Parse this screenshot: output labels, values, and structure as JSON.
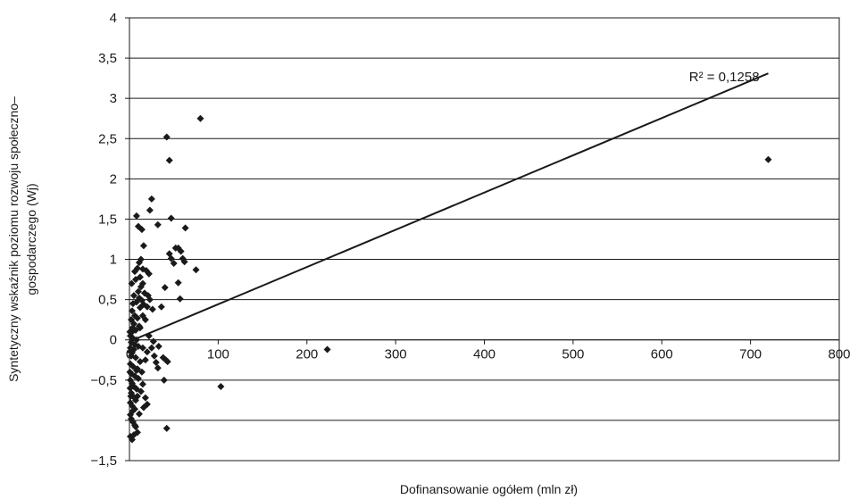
{
  "chart_data": {
    "type": "scatter",
    "xlabel": "Dofinansowanie ogółem (mln zł)",
    "ylabel_lines": [
      "Syntetyczny wskaźnik poziomu rozwoju społeczno–",
      "gospodarczego (Wj)"
    ],
    "xlim": [
      0,
      800
    ],
    "ylim": [
      -1.5,
      4
    ],
    "x_ticks": [
      0,
      100,
      200,
      300,
      400,
      500,
      600,
      700,
      800
    ],
    "x_tick_labels": [
      "0",
      "100",
      "200",
      "300",
      "400",
      "500",
      "600",
      "700",
      "800"
    ],
    "y_ticks": [
      -1.5,
      -1,
      -0.5,
      0,
      0.5,
      1,
      1.5,
      2,
      2.5,
      3,
      3.5,
      4
    ],
    "y_tick_labels": [
      "−1,5",
      "",
      "−0,5",
      "0",
      "0,5",
      "1",
      "1,5",
      "2",
      "2,5",
      "3",
      "3,5",
      "4"
    ],
    "grid": "horizontal",
    "marker": "diamond",
    "color": "#1a1a1a",
    "trendline": {
      "x": [
        0,
        720
      ],
      "y": [
        -0.02,
        3.31
      ]
    },
    "annotation": {
      "text": "R² = 0,1258",
      "x": 710,
      "y": 3.27
    },
    "points": [
      [
        80,
        2.75
      ],
      [
        42,
        2.52
      ],
      [
        45,
        2.23
      ],
      [
        720,
        2.24
      ],
      [
        223,
        -0.12
      ],
      [
        103,
        -0.58
      ],
      [
        25,
        1.75
      ],
      [
        23,
        1.61
      ],
      [
        32,
        1.43
      ],
      [
        47,
        1.51
      ],
      [
        63,
        1.39
      ],
      [
        8,
        1.54
      ],
      [
        10,
        1.41
      ],
      [
        14,
        1.37
      ],
      [
        55,
        1.14
      ],
      [
        52,
        1.14
      ],
      [
        58,
        1.1
      ],
      [
        45,
        1.07
      ],
      [
        60,
        1.01
      ],
      [
        62,
        0.97
      ],
      [
        47,
        1.01
      ],
      [
        75,
        0.87
      ],
      [
        40,
        0.65
      ],
      [
        55,
        0.71
      ],
      [
        57,
        0.51
      ],
      [
        36,
        0.41
      ],
      [
        50,
        0.95
      ],
      [
        16,
        1.17
      ],
      [
        13,
        1.0
      ],
      [
        11,
        0.96
      ],
      [
        9,
        0.89
      ],
      [
        15,
        0.88
      ],
      [
        19,
        0.86
      ],
      [
        22,
        0.82
      ],
      [
        6,
        0.85
      ],
      [
        12,
        0.78
      ],
      [
        7,
        0.75
      ],
      [
        15,
        0.7
      ],
      [
        13,
        0.66
      ],
      [
        10,
        0.6
      ],
      [
        17,
        0.58
      ],
      [
        21,
        0.55
      ],
      [
        11,
        0.52
      ],
      [
        14,
        0.49
      ],
      [
        8,
        0.47
      ],
      [
        16,
        0.44
      ],
      [
        20,
        0.41
      ],
      [
        4,
        0.45
      ],
      [
        12,
        0.4
      ],
      [
        3,
        0.36
      ],
      [
        6,
        0.3
      ],
      [
        9,
        0.27
      ],
      [
        2,
        0.25
      ],
      [
        5,
        0.2
      ],
      [
        11,
        0.17
      ],
      [
        7,
        0.12
      ],
      [
        3,
        0.1
      ],
      [
        1,
        0.05
      ],
      [
        4,
        0.02
      ],
      [
        8,
        0.0
      ],
      [
        2,
        -0.03
      ],
      [
        6,
        -0.06
      ],
      [
        10,
        -0.08
      ],
      [
        1,
        -0.1
      ],
      [
        5,
        -0.12
      ],
      [
        15,
        -0.1
      ],
      [
        20,
        -0.15
      ],
      [
        25,
        -0.1
      ],
      [
        28,
        -0.2
      ],
      [
        30,
        -0.28
      ],
      [
        32,
        -0.35
      ],
      [
        38,
        -0.22
      ],
      [
        41,
        -0.25
      ],
      [
        43,
        -0.27
      ],
      [
        18,
        -0.25
      ],
      [
        3,
        -0.16
      ],
      [
        2,
        -0.2
      ],
      [
        7,
        -0.22
      ],
      [
        12,
        -0.27
      ],
      [
        1,
        -0.3
      ],
      [
        4,
        -0.33
      ],
      [
        9,
        -0.36
      ],
      [
        14,
        -0.4
      ],
      [
        2,
        -0.42
      ],
      [
        6,
        -0.45
      ],
      [
        10,
        -0.48
      ],
      [
        1,
        -0.5
      ],
      [
        3,
        -0.54
      ],
      [
        5,
        -0.58
      ],
      [
        8,
        -0.61
      ],
      [
        13,
        -0.64
      ],
      [
        2,
        -0.66
      ],
      [
        4,
        -0.7
      ],
      [
        7,
        -0.75
      ],
      [
        1,
        -0.78
      ],
      [
        3,
        -0.82
      ],
      [
        6,
        -0.86
      ],
      [
        15,
        -0.55
      ],
      [
        18,
        -0.72
      ],
      [
        20,
        -0.8
      ],
      [
        39,
        -0.5
      ],
      [
        42,
        -1.1
      ],
      [
        1,
        -0.93
      ],
      [
        2,
        -0.98
      ],
      [
        4,
        -1.02
      ],
      [
        7,
        -1.08
      ],
      [
        9,
        -1.15
      ],
      [
        1,
        -1.2
      ],
      [
        3,
        -1.24
      ],
      [
        5,
        -1.18
      ],
      [
        11,
        -0.92
      ],
      [
        16,
        -0.84
      ],
      [
        23,
        0.5
      ],
      [
        26,
        0.38
      ],
      [
        18,
        0.25
      ],
      [
        22,
        0.05
      ],
      [
        27,
        -0.02
      ],
      [
        33,
        -0.08
      ],
      [
        0.5,
        -0.4
      ],
      [
        0.8,
        -0.6
      ],
      [
        1.5,
        -0.7
      ],
      [
        2.5,
        0.7
      ],
      [
        3.5,
        0.15
      ],
      [
        0.5,
        0.1
      ],
      [
        1.2,
        -0.15
      ],
      [
        12,
        0.15
      ],
      [
        8,
        -0.38
      ],
      [
        5,
        0.55
      ],
      [
        15,
        0.3
      ],
      [
        9,
        -0.7
      ],
      [
        4,
        -0.88
      ],
      [
        6,
        -1.06
      ]
    ]
  }
}
